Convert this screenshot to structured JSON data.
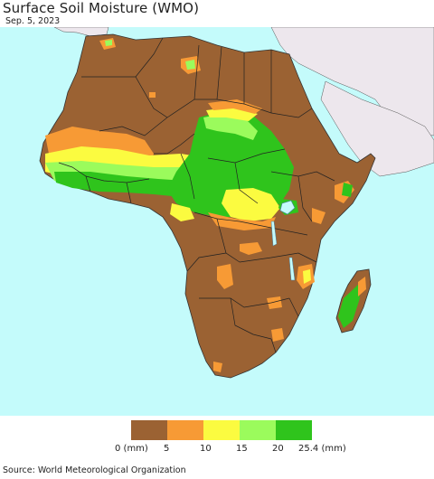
{
  "title": "Surface Soil Moisture (WMO)",
  "date": "Sep. 5, 2023",
  "source": "Source: World Meteorological Organization",
  "legend": {
    "colors": [
      "#9b6233",
      "#f79a35",
      "#fbfb40",
      "#9bfb5c",
      "#2fc41c"
    ],
    "labels": [
      "0 (mm)",
      "5",
      "10",
      "15",
      "20",
      "25.4 (mm)"
    ]
  },
  "map_colors": {
    "ocean": "#c4fbfb",
    "land_non_africa": "#ede7ed",
    "dry": "#9b6233",
    "wet_low": "#f79a35",
    "wet_mid": "#fbfb40",
    "wet_high": "#9bfb5c",
    "wet_max": "#2fc41c",
    "borders": "#222222",
    "lakes": "#c4fbfb"
  }
}
